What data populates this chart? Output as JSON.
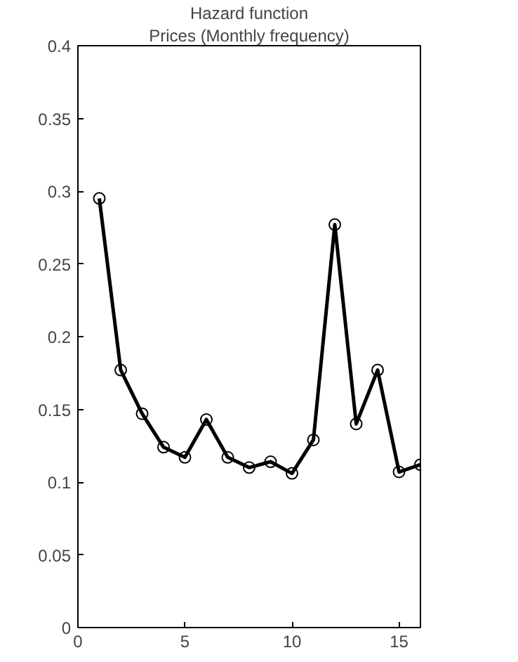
{
  "chart_data": {
    "type": "line",
    "title": "Hazard function",
    "subtitle": "Prices (Monthly frequency)",
    "x": [
      1,
      2,
      3,
      4,
      5,
      6,
      7,
      8,
      9,
      10,
      11,
      12,
      13,
      14,
      15,
      16
    ],
    "series": [
      {
        "color": "#000000",
        "values": [
          0.295,
          0.177,
          0.147,
          0.124,
          0.117,
          0.143,
          0.117,
          0.11,
          0.114,
          0.106,
          0.129,
          0.277,
          0.14,
          0.177,
          0.107,
          0.112
        ]
      }
    ],
    "xlim": [
      0,
      16
    ],
    "xticks": [
      0,
      5,
      10,
      15
    ],
    "ylim": [
      0,
      0.4
    ],
    "yticks": [
      0,
      0.05,
      0.1,
      0.15,
      0.2,
      0.25,
      0.3,
      0.35,
      0.4
    ],
    "marker": "circle",
    "line_style": "solid"
  }
}
